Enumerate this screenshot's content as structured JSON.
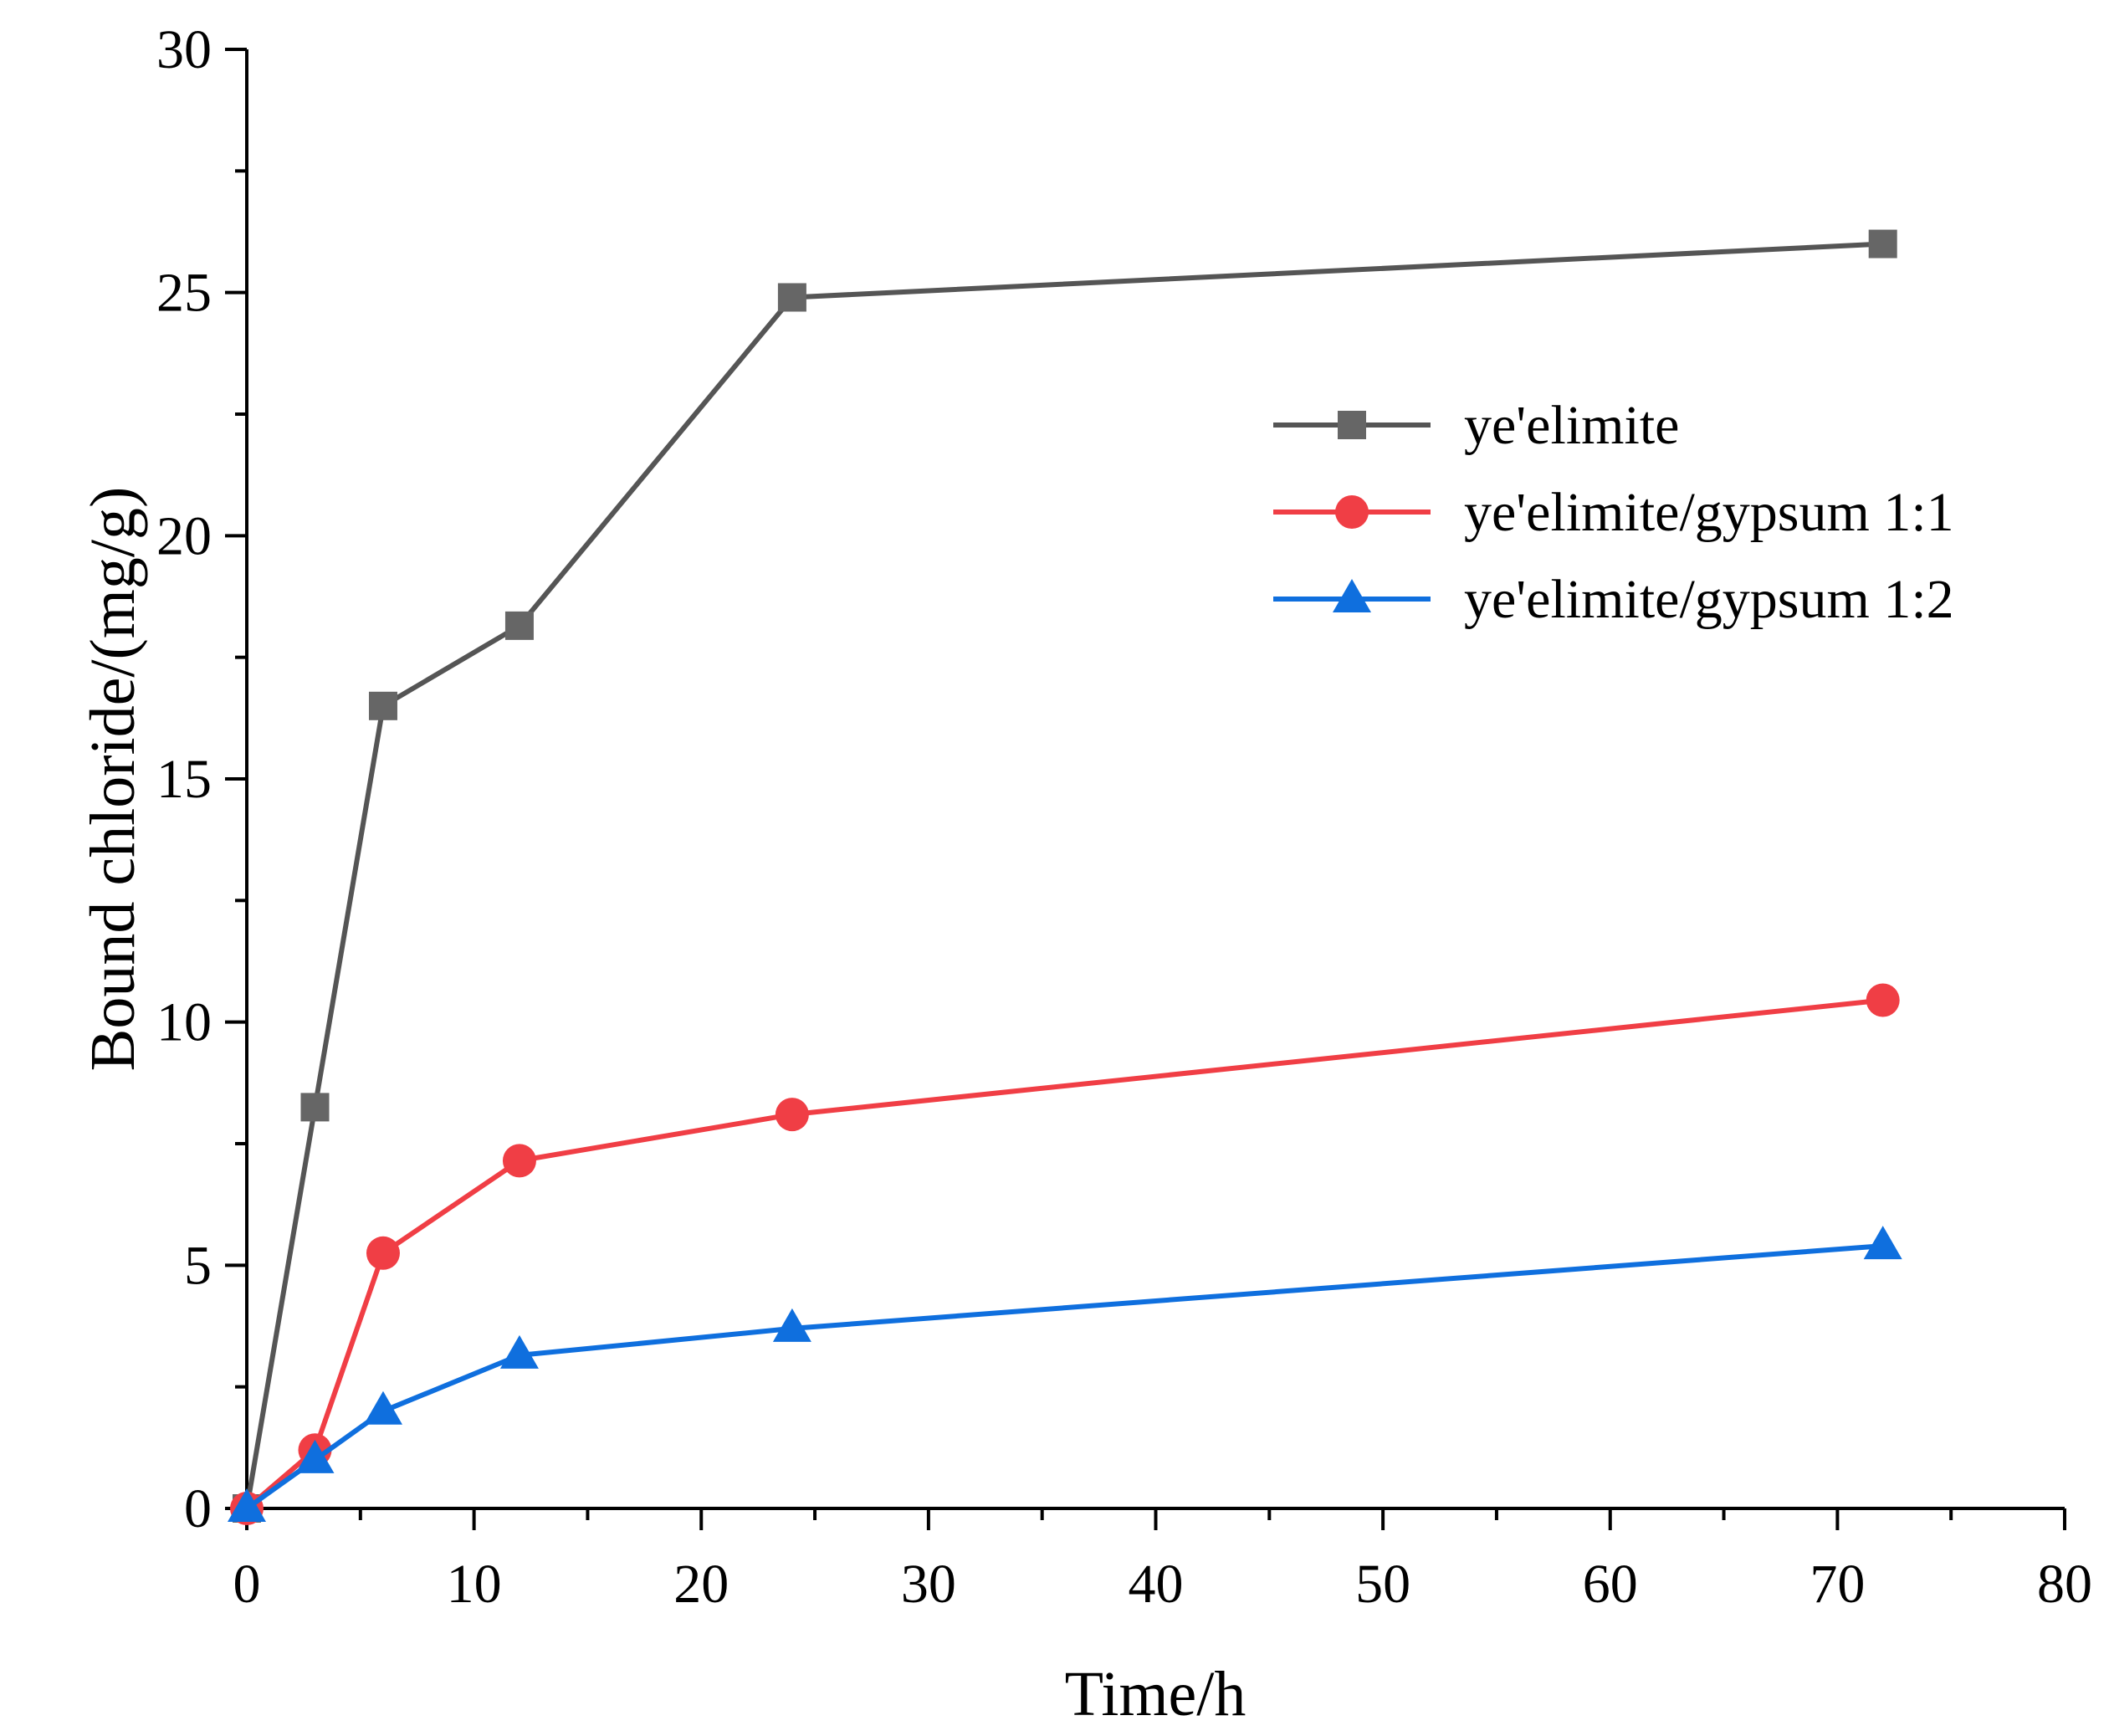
{
  "chart_data": {
    "type": "line",
    "title": "",
    "xlabel": "Time/h",
    "ylabel": "Bound chloride/(mg/g)",
    "xlim": [
      0,
      80
    ],
    "ylim": [
      0,
      30
    ],
    "xticks": [
      "0",
      "10",
      "20",
      "30",
      "40",
      "50",
      "60",
      "70",
      "80"
    ],
    "yticks": [
      "0",
      "5",
      "10",
      "15",
      "20",
      "25",
      "30"
    ],
    "grid": false,
    "legend_position": "center-right",
    "x": [
      0,
      3,
      6,
      12,
      24,
      72
    ],
    "series": [
      {
        "name": "ye'elimite",
        "marker": "square",
        "color": "#555555",
        "marker_color": "#666666",
        "values": [
          0,
          8.25,
          16.5,
          18.15,
          24.9,
          26.0
        ]
      },
      {
        "name": "ye'elimite/gypsum 1:1",
        "marker": "circle",
        "color": "#f03e45",
        "marker_color": "#f03e45",
        "values": [
          0,
          1.2,
          5.25,
          7.15,
          8.1,
          10.45
        ]
      },
      {
        "name": "ye'elimite/gypsum 1:2",
        "marker": "triangle",
        "color": "#0f6fde",
        "marker_color": "#0f6fde",
        "values": [
          0,
          1.0,
          2.0,
          3.15,
          3.7,
          5.4
        ]
      }
    ]
  }
}
